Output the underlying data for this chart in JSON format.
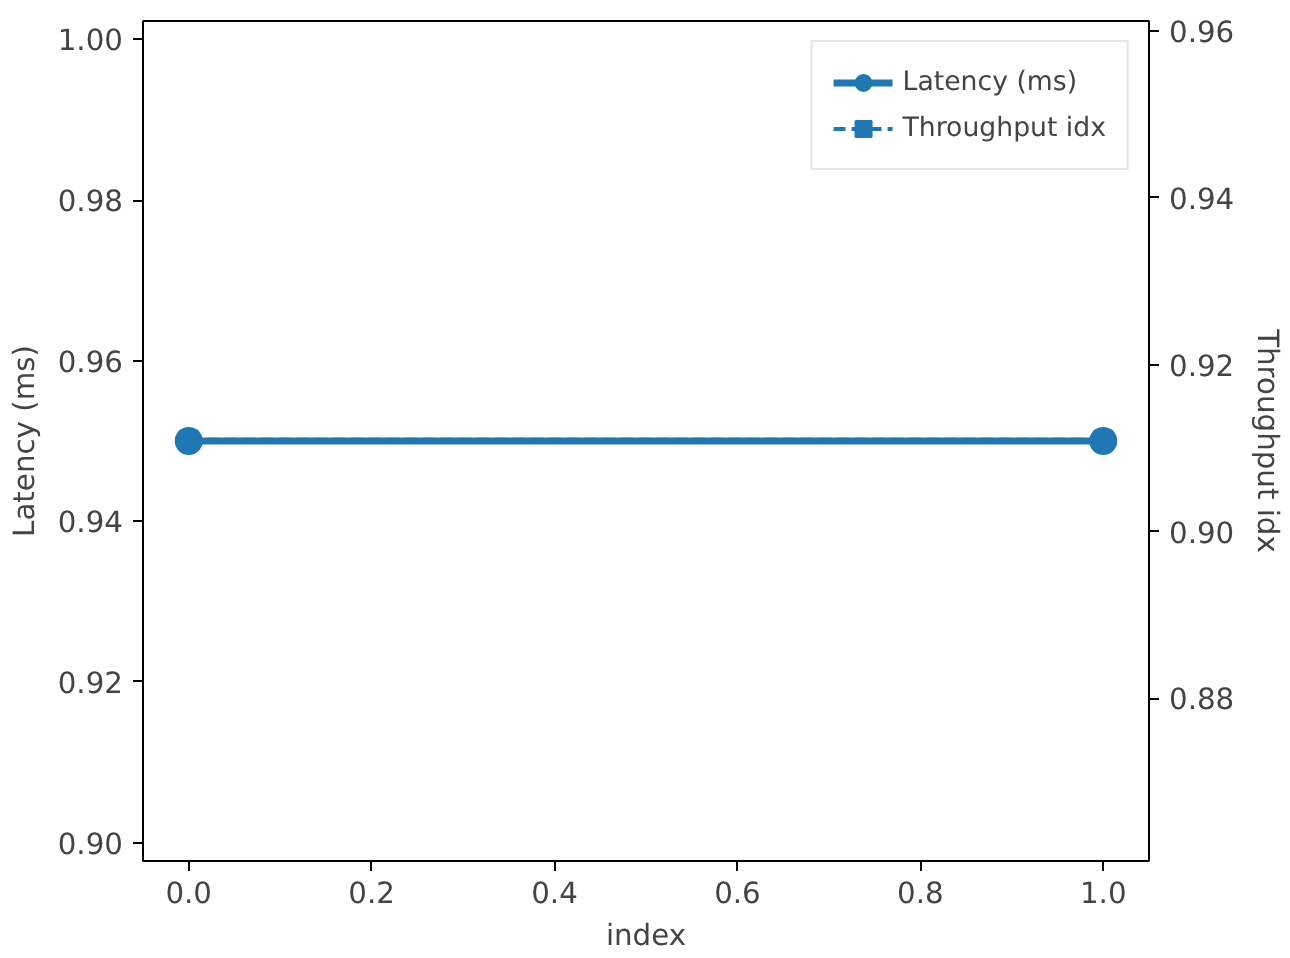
{
  "chart_data": {
    "type": "line",
    "xlabel": "index",
    "ylabel": "Latency (ms)",
    "y2label": "Throughput idx",
    "x": [
      0,
      1
    ],
    "series": [
      {
        "name": "Latency (ms)",
        "color": "#1f77b4",
        "values": [
          0.95,
          0.95
        ],
        "marker": "circle",
        "line_style": "solid"
      },
      {
        "name": "Throughput idx",
        "color": "#1f77b4",
        "values": [
          0.911,
          0.911
        ],
        "marker": "square",
        "line_style": "dashed",
        "axis": "y2"
      }
    ],
    "xlim": [
      -0.05,
      1.05
    ],
    "xticks": [
      {
        "value": 0,
        "label": "0.0"
      },
      0.2,
      0.4,
      0.6,
      0.8,
      {
        "value": 1,
        "label": "1.0"
      }
    ],
    "ylim": [
      0.8977,
      1.0023
    ],
    "yticks": [
      {
        "value": 0.9,
        "label": "0.90"
      },
      0.92,
      0.94,
      0.96,
      0.98,
      {
        "value": 1,
        "label": "1.00"
      }
    ],
    "y2lim": [
      0.8605,
      0.9612
    ],
    "y2ticks": [
      0.88,
      {
        "value": 0.9,
        "label": "0.90"
      },
      0.92,
      0.94,
      0.96
    ],
    "grid": false,
    "legend": "top right"
  }
}
